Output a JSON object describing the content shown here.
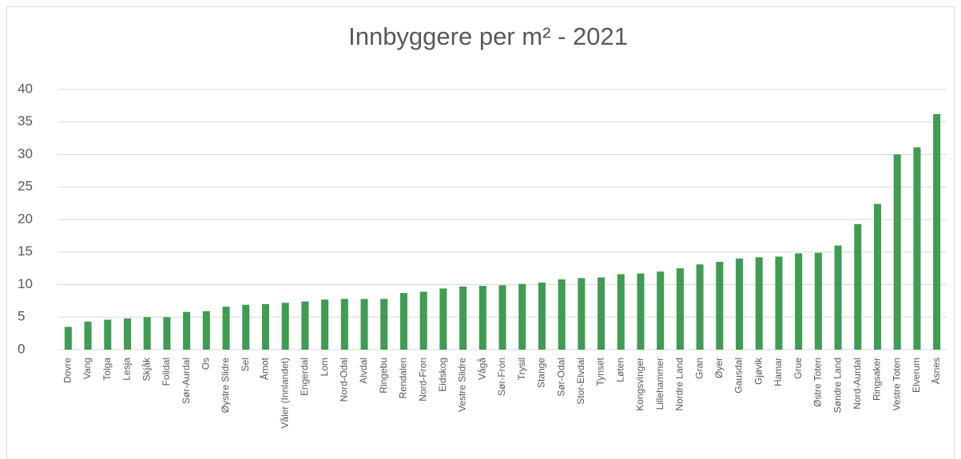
{
  "chart_data": {
    "type": "bar",
    "title": "Innbyggere per m² - 2021",
    "categories": [
      "Dovre",
      "Vang",
      "Tolga",
      "Lesja",
      "Skjåk",
      "Folldal",
      "Sør-Aurdal",
      "Os",
      "Øystre Slidre",
      "Sel",
      "Åmot",
      "Våler (Innlandet)",
      "Engerdal",
      "Lom",
      "Nord-Odal",
      "Alvdal",
      "Ringebu",
      "Rendalen",
      "Nord-Fron",
      "Eidskog",
      "Vestre Slidre",
      "Vågå",
      "Sør-Fron",
      "Trysil",
      "Stange",
      "Sør-Odal",
      "Stor-Elvdal",
      "Tynset",
      "Løten",
      "Kongsvinger",
      "Lillehammer",
      "Nordre Land",
      "Gran",
      "Øyer",
      "Gausdal",
      "Gjøvik",
      "Hamar",
      "Grue",
      "Østre Toten",
      "Søndre Land",
      "Nord-Aurdal",
      "Ringsaker",
      "Vestre Toten",
      "Elverum",
      "Åsnes"
    ],
    "values": [
      3.5,
      4.3,
      4.6,
      4.8,
      5.0,
      5.0,
      5.8,
      5.9,
      6.6,
      6.9,
      7.0,
      7.2,
      7.4,
      7.7,
      7.8,
      7.8,
      7.8,
      8.7,
      8.9,
      9.4,
      9.7,
      9.8,
      9.9,
      10.1,
      10.3,
      10.8,
      11.0,
      11.1,
      11.6,
      11.7,
      12.0,
      12.5,
      13.1,
      13.5,
      14.0,
      14.2,
      14.3,
      14.8,
      14.9,
      16.0,
      19.3,
      22.4,
      30.0,
      31.1,
      36.2
    ],
    "color": "#3f9c52",
    "ylim": [
      0,
      40
    ],
    "yticks": [
      0,
      5,
      10,
      15,
      20,
      25,
      30,
      35,
      40
    ],
    "grid": true
  }
}
